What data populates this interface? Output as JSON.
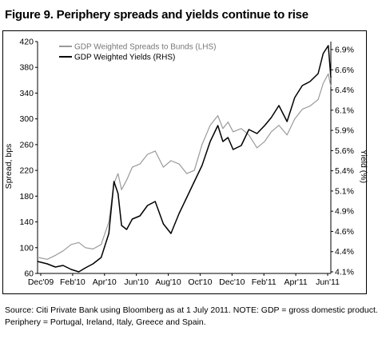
{
  "figure": {
    "title": "Figure 9.  Periphery spreads and yields continue to rise",
    "source_line1": "Source:  Citi Private Bank using Bloomberg as at 1 July 2011. NOTE: GDP = gross domestic product.",
    "source_line2": "Periphery = Portugal, Ireland, Italy, Greece and Spain."
  },
  "colors": {
    "spreads": "#9a9a9a",
    "yields": "#000000"
  },
  "chart_data": {
    "type": "line",
    "title": "",
    "xlabel": "",
    "ylabel": "Spread, bps",
    "y2label": "Yield (%)",
    "ylim": [
      60,
      420
    ],
    "y2lim": [
      4.1,
      7.0
    ],
    "xlim": [
      "2009-12-01",
      "2011-06-30"
    ],
    "legend_position": "top-left",
    "grid": false,
    "x_ticks": [
      "Dec'09",
      "Feb'10",
      "Apr'10",
      "Jun'10",
      "Aug'10",
      "Oct'10",
      "Dec'10",
      "Feb'11",
      "Apr'11",
      "Jun'11"
    ],
    "y_ticks": [
      60,
      100,
      140,
      180,
      220,
      260,
      300,
      340,
      380,
      420
    ],
    "y2_ticks": [
      "4.1%",
      "4.4%",
      "4.6%",
      "4.9%",
      "5.1%",
      "5.4%",
      "5.6%",
      "5.9%",
      "6.1%",
      "6.4%",
      "6.6%",
      "6.9%"
    ],
    "x": [
      "2009-12-01",
      "2009-12-20",
      "2010-01-05",
      "2010-01-20",
      "2010-02-05",
      "2010-02-20",
      "2010-03-05",
      "2010-03-20",
      "2010-04-05",
      "2010-04-20",
      "2010-04-30",
      "2010-05-08",
      "2010-05-15",
      "2010-05-25",
      "2010-06-05",
      "2010-06-20",
      "2010-07-05",
      "2010-07-20",
      "2010-08-05",
      "2010-08-20",
      "2010-09-05",
      "2010-09-20",
      "2010-10-05",
      "2010-10-20",
      "2010-11-05",
      "2010-11-20",
      "2010-11-30",
      "2010-12-10",
      "2010-12-20",
      "2011-01-05",
      "2011-01-20",
      "2011-02-05",
      "2011-02-20",
      "2011-03-05",
      "2011-03-20",
      "2011-04-05",
      "2011-04-20",
      "2011-05-05",
      "2011-05-20",
      "2011-06-05",
      "2011-06-15",
      "2011-06-25",
      "2011-06-30"
    ],
    "series": [
      {
        "name": "GDP Weighted Spreads to Bunds (LHS)",
        "axis": "left",
        "values": [
          85,
          82,
          88,
          95,
          105,
          108,
          100,
          98,
          105,
          140,
          200,
          215,
          190,
          205,
          225,
          230,
          245,
          250,
          225,
          235,
          230,
          215,
          220,
          260,
          290,
          305,
          285,
          295,
          280,
          285,
          275,
          255,
          265,
          280,
          290,
          275,
          300,
          315,
          320,
          330,
          355,
          370,
          350
        ]
      },
      {
        "name": "GDP Weighted Yields (RHS)",
        "axis": "right",
        "values": [
          4.25,
          4.22,
          4.18,
          4.2,
          4.15,
          4.12,
          4.17,
          4.22,
          4.3,
          4.6,
          5.25,
          5.1,
          4.7,
          4.65,
          4.78,
          4.82,
          4.95,
          5.0,
          4.72,
          4.6,
          4.85,
          5.05,
          5.25,
          5.45,
          5.75,
          5.95,
          5.75,
          5.8,
          5.65,
          5.7,
          5.9,
          5.85,
          5.95,
          6.05,
          6.2,
          6.0,
          6.3,
          6.45,
          6.5,
          6.6,
          6.85,
          6.95,
          6.55
        ]
      }
    ]
  }
}
